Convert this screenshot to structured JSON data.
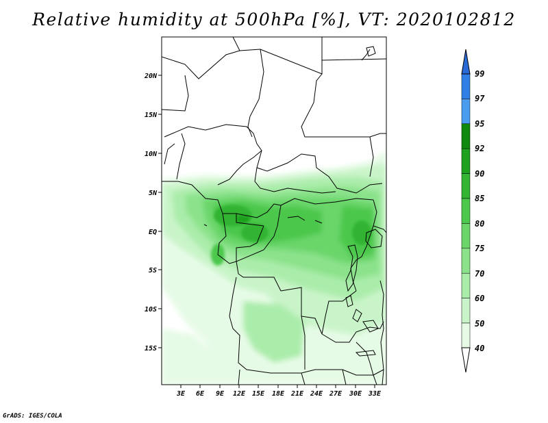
{
  "title": "Relative humidity at 500hPa [%], VT: 2020102812",
  "credit": "GrADS: IGES/COLA",
  "map": {
    "lat_labels": [
      "20N",
      "15N",
      "10N",
      "5N",
      "EQ",
      "5S",
      "10S",
      "15S"
    ],
    "lon_labels": [
      "3E",
      "6E",
      "9E",
      "12E",
      "15E",
      "18E",
      "21E",
      "24E",
      "27E",
      "30E",
      "33E"
    ]
  },
  "colorbar": {
    "labels": [
      "99",
      "97",
      "95",
      "92",
      "90",
      "85",
      "80",
      "75",
      "70",
      "60",
      "50",
      "40"
    ],
    "colors": [
      "#1e5fd6",
      "#2f7fe6",
      "#4a9cee",
      "#0f8a0f",
      "#1fa01f",
      "#33b433",
      "#4cc84c",
      "#6ad66a",
      "#8be28b",
      "#aaecaa",
      "#c9f4c9",
      "#e6fbe6"
    ],
    "top_color": "#2a6ad4"
  }
}
